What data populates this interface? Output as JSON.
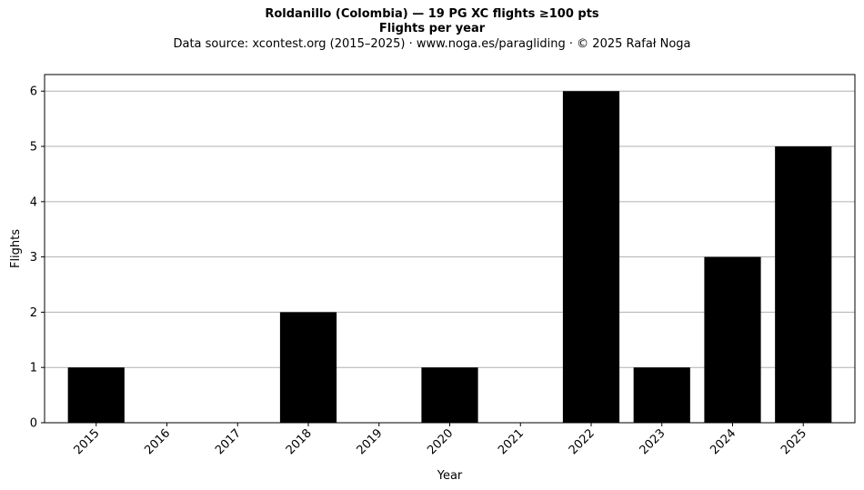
{
  "header": {
    "title": "Roldanillo (Colombia)  —  19 PG XC flights ≥100 pts",
    "subtitle": "Flights per year",
    "source": "Data source: xcontest.org (2015–2025)  ·  www.noga.es/paragliding  ·  © 2025 Rafał Noga"
  },
  "chart_data": {
    "type": "bar",
    "title": "Roldanillo (Colombia)  —  19 PG XC flights ≥100 pts",
    "subtitle": "Flights per year",
    "xlabel": "Year",
    "ylabel": "Flights",
    "categories": [
      "2015",
      "2016",
      "2017",
      "2018",
      "2019",
      "2020",
      "2021",
      "2022",
      "2023",
      "2024",
      "2025"
    ],
    "values": [
      1,
      0,
      0,
      2,
      0,
      1,
      0,
      6,
      1,
      3,
      5
    ],
    "ylim": [
      0,
      6.3
    ],
    "yticks": [
      0,
      1,
      2,
      3,
      4,
      5,
      6
    ],
    "grid": "y-major",
    "bar_color": "#000000",
    "grid_color": "#b0b0b0"
  }
}
